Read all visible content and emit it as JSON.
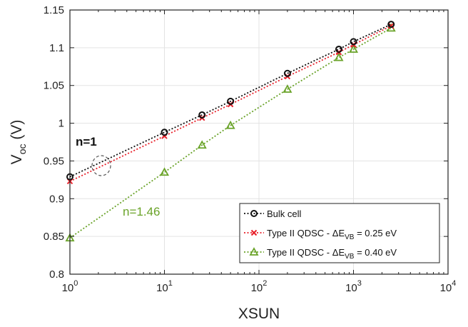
{
  "chart_data": {
    "type": "scatter",
    "title": "",
    "xlabel": "XSUN",
    "ylabel": {
      "main": "V",
      "sub": "oc",
      "unit": " (V)"
    },
    "xscale": "log",
    "xlim": [
      1,
      10000
    ],
    "ylim": [
      0.8,
      1.15
    ],
    "grid": true,
    "legend_position": "bottom-right",
    "x_ticks": [
      {
        "base": "10",
        "exp": "0"
      },
      {
        "base": "10",
        "exp": "1"
      },
      {
        "base": "10",
        "exp": "2"
      },
      {
        "base": "10",
        "exp": "3"
      },
      {
        "base": "10",
        "exp": "4"
      }
    ],
    "y_ticks": [
      "0.8",
      "0.85",
      "0.9",
      "0.95",
      "1",
      "1.05",
      "1.1",
      "1.15"
    ],
    "y_tick_values": [
      0.8,
      0.85,
      0.9,
      0.95,
      1.0,
      1.05,
      1.1,
      1.15
    ],
    "series": [
      {
        "legend": {
          "main": "Bulk cell"
        },
        "marker": "circle",
        "color": "#111111",
        "x": [
          1,
          10,
          25,
          50,
          200,
          700,
          1000,
          2500
        ],
        "y": [
          0.929,
          0.988,
          1.011,
          1.029,
          1.066,
          1.098,
          1.108,
          1.131
        ]
      },
      {
        "legend": {
          "main": "Type II QDSC -  ",
          "delta": "Δ",
          "var": "E",
          "sub": "VB",
          "value": " = 0.25 eV"
        },
        "marker": "x",
        "color": "#e8202a",
        "x": [
          1,
          10,
          25,
          50,
          200,
          700,
          1000,
          2500
        ],
        "y": [
          0.923,
          0.983,
          1.007,
          1.025,
          1.062,
          1.094,
          1.104,
          1.129
        ]
      },
      {
        "legend": {
          "main": "Type II QDSC -  ",
          "delta": "Δ",
          "var": "E",
          "sub": "VB",
          "value": " = 0.40 eV"
        },
        "marker": "triangle",
        "color": "#6aa329",
        "x": [
          1,
          10,
          25,
          50,
          200,
          700,
          1000,
          2500
        ],
        "y": [
          0.848,
          0.935,
          0.971,
          0.997,
          1.045,
          1.087,
          1.098,
          1.126
        ]
      }
    ],
    "annotations": [
      {
        "text": "n=1",
        "color": "#111111"
      },
      {
        "text": "n=1.46",
        "color": "#6aa329"
      }
    ]
  }
}
